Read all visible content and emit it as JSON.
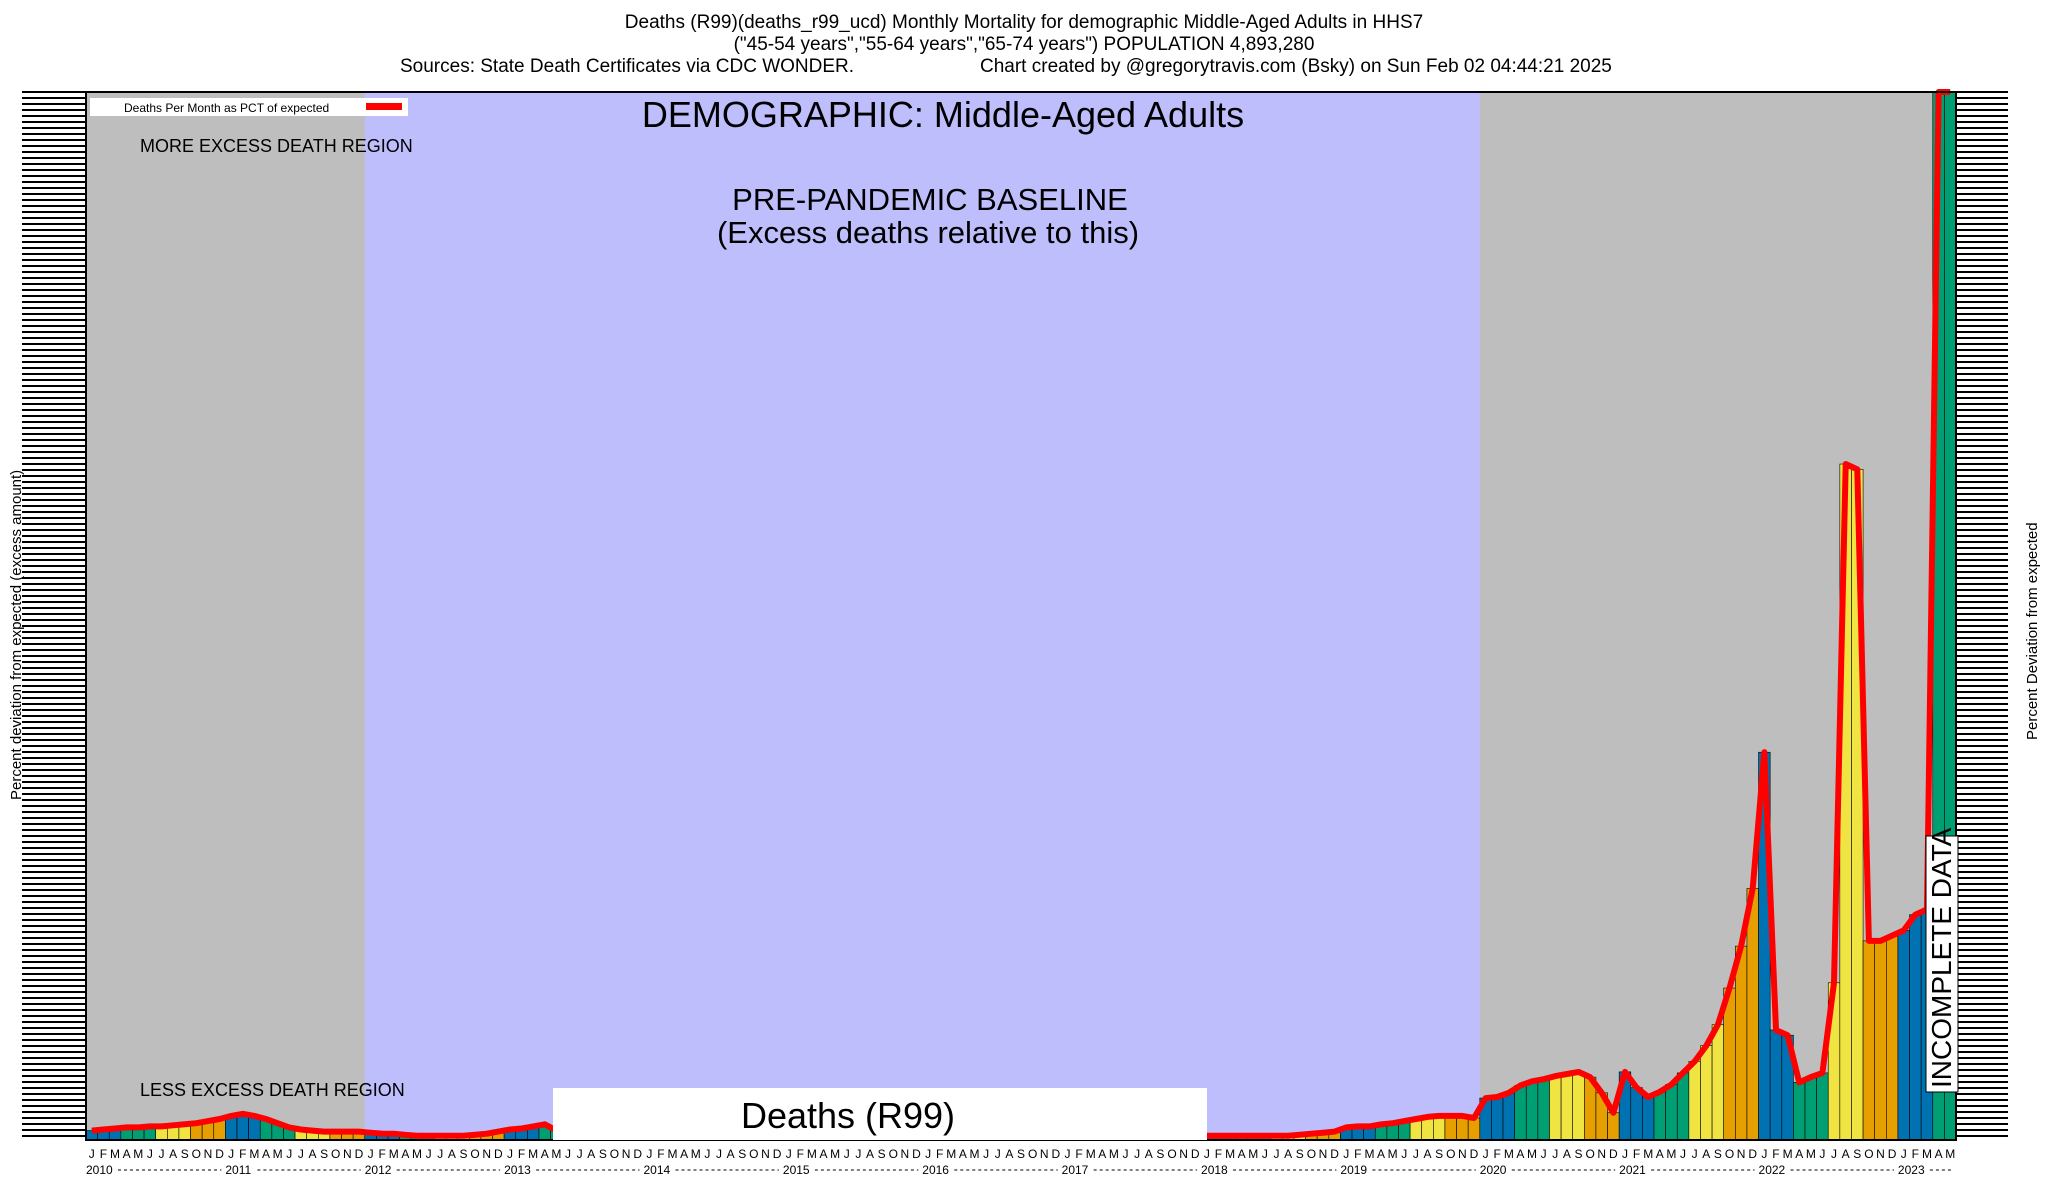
{
  "header": {
    "line1": "Deaths (R99)(deaths_r99_ucd) Monthly Mortality for demographic Middle-Aged Adults in HHS7",
    "line2": "(\"45-54 years\",\"55-64 years\",\"65-74 years\") POPULATION 4,893,280",
    "line3": "Sources: State Death Certificates via CDC WONDER.",
    "line4": "Chart created by @gregorytravis.com (Bsky) on Sun Feb 02 04:44:21 2025"
  },
  "legend": {
    "label": "Deaths Per Month as PCT of expected",
    "color": "#ff0000"
  },
  "annotations": {
    "demographic": "DEMOGRAPHIC: Middle-Aged Adults",
    "baseline_title": "PRE-PANDEMIC BASELINE",
    "baseline_sub": "(Excess deaths relative to this)",
    "more_region": "MORE EXCESS DEATH REGION",
    "less_region": "LESS EXCESS DEATH REGION",
    "cause_box": "Deaths (R99)",
    "incomplete": "INCOMPLETE DATA"
  },
  "axes": {
    "y_left_label": "Percent deviation from expected (excess amount)",
    "y_right_label": "Percent Deviation from expected"
  },
  "colors": {
    "plot_gray": "#bebebe",
    "baseline_blue": "#bebefc",
    "line_red": "#ff0000",
    "bar_palette": [
      "#0072b2",
      "#009e73",
      "#f0e442",
      "#e69f00"
    ]
  },
  "chart_data": {
    "type": "bar",
    "title": "Deaths (R99)(deaths_r99_ucd) Monthly Mortality for demographic Middle-Aged Adults in HHS7",
    "x_start": "2010-01",
    "x_end": "2023-05",
    "month_tick_labels": [
      "J",
      "F",
      "M",
      "A",
      "M",
      "J",
      "J",
      "A",
      "S",
      "O",
      "N",
      "D"
    ],
    "year_labels": [
      "2010",
      "2011",
      "2012",
      "2013",
      "2014",
      "2015",
      "2016",
      "2017",
      "2018",
      "2019",
      "2020",
      "2021",
      "2022",
      "2023"
    ],
    "baseline_period": [
      "2012-01",
      "2019-12"
    ],
    "incomplete_from": "2023-05",
    "ylim": [
      0,
      100
    ],
    "series": [
      {
        "type": "bar",
        "values": [
          0.9,
          1.0,
          1.1,
          1.2,
          1.2,
          1.3,
          1.3,
          1.4,
          1.5,
          1.6,
          1.8,
          2.0,
          2.3,
          2.5,
          2.3,
          2.0,
          1.6,
          1.2,
          1.0,
          0.9,
          0.8,
          0.8,
          0.8,
          0.8,
          0.7,
          0.6,
          0.6,
          0.5,
          0.4,
          0.4,
          0.4,
          0.4,
          0.4,
          0.5,
          0.6,
          0.8,
          1.0,
          1.1,
          1.3,
          1.5,
          0.9,
          0.8,
          0.7,
          0.6,
          0.5,
          0.4,
          0.4,
          0.5,
          0.5,
          0.6,
          0.6,
          0.5,
          0.5,
          0.5,
          0.5,
          0.5,
          0.5,
          0.5,
          0.5,
          0.5,
          0.5,
          0.5,
          0.5,
          0.5,
          0.5,
          0.5,
          0.5,
          0.5,
          0.5,
          0.5,
          0.5,
          0.5,
          0.5,
          0.5,
          0.5,
          0.5,
          0.5,
          0.5,
          0.5,
          0.5,
          0.5,
          0.5,
          0.5,
          0.5,
          0.5,
          0.5,
          0.4,
          0.3,
          0.3,
          0.3,
          0.3,
          0.4,
          0.4,
          0.4,
          0.4,
          0.4,
          0.4,
          0.4,
          0.4,
          0.4,
          0.4,
          0.4,
          0.4,
          0.4,
          0.5,
          0.6,
          0.7,
          0.8,
          1.2,
          1.3,
          1.3,
          1.5,
          1.6,
          1.8,
          2.0,
          2.2,
          2.3,
          2.3,
          2.3,
          2.1,
          4.0,
          4.1,
          4.5,
          5.2,
          5.6,
          5.8,
          6.1,
          6.3,
          6.5,
          6.0,
          4.5,
          2.6,
          6.5,
          5.0,
          4.1,
          4.6,
          5.3,
          6.4,
          7.5,
          9.0,
          11.0,
          14.5,
          18.5,
          24.0,
          37.0,
          10.5,
          10.0,
          5.5,
          6.0,
          6.4,
          15.0,
          64.5,
          64.0,
          19.0,
          19.0,
          19.5,
          20.0,
          21.5,
          22.0,
          100.0,
          100.0
        ]
      },
      {
        "type": "line",
        "name": "Deaths Per Month as PCT of expected",
        "values": [
          0.9,
          1.0,
          1.1,
          1.2,
          1.2,
          1.3,
          1.3,
          1.4,
          1.5,
          1.6,
          1.8,
          2.0,
          2.3,
          2.5,
          2.3,
          2.0,
          1.6,
          1.2,
          1.0,
          0.9,
          0.8,
          0.8,
          0.8,
          0.8,
          0.7,
          0.6,
          0.6,
          0.5,
          0.4,
          0.4,
          0.4,
          0.4,
          0.4,
          0.5,
          0.6,
          0.8,
          1.0,
          1.1,
          1.3,
          1.5,
          0.9,
          0.8,
          0.7,
          0.6,
          0.5,
          0.4,
          0.4,
          0.5,
          0.5,
          0.6,
          0.6,
          0.5,
          0.5,
          0.5,
          0.5,
          0.5,
          0.5,
          0.5,
          0.5,
          0.5,
          0.5,
          0.5,
          0.5,
          0.5,
          0.5,
          0.5,
          0.5,
          0.5,
          0.5,
          0.5,
          0.5,
          0.5,
          0.5,
          0.5,
          0.5,
          0.5,
          0.5,
          0.5,
          0.5,
          0.5,
          0.5,
          0.5,
          0.5,
          0.5,
          0.5,
          0.5,
          0.4,
          0.3,
          0.3,
          0.3,
          0.3,
          0.4,
          0.4,
          0.4,
          0.4,
          0.4,
          0.4,
          0.4,
          0.4,
          0.4,
          0.4,
          0.4,
          0.4,
          0.4,
          0.5,
          0.6,
          0.7,
          0.8,
          1.2,
          1.3,
          1.3,
          1.5,
          1.6,
          1.8,
          2.0,
          2.2,
          2.3,
          2.3,
          2.3,
          2.1,
          4.0,
          4.1,
          4.5,
          5.2,
          5.6,
          5.8,
          6.1,
          6.3,
          6.5,
          6.0,
          4.5,
          2.6,
          6.5,
          5.0,
          4.1,
          4.6,
          5.3,
          6.4,
          7.5,
          9.0,
          11.0,
          14.5,
          18.5,
          24.0,
          37.0,
          10.5,
          10.0,
          5.5,
          6.0,
          6.4,
          15.0,
          64.5,
          64.0,
          19.0,
          19.0,
          19.5,
          20.0,
          21.5,
          22.0,
          100.0,
          100.0
        ]
      }
    ]
  }
}
